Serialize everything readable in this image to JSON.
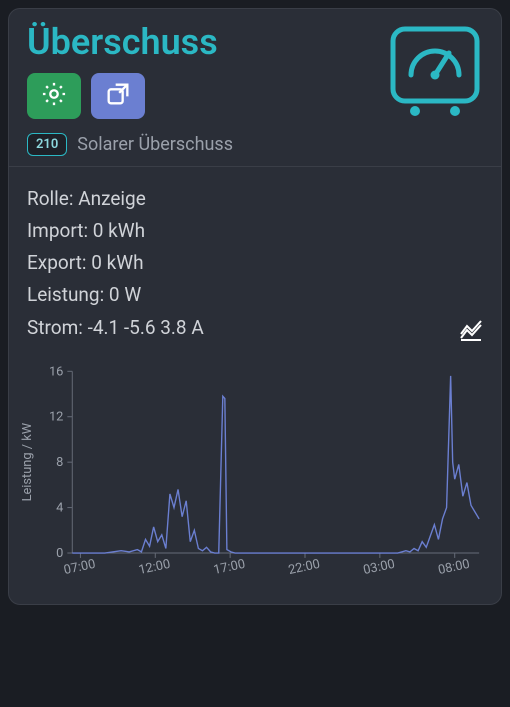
{
  "header": {
    "title": "Überschuss",
    "badge": "210",
    "subtitle": "Solarer Überschuss",
    "icon_color": "#2bb8c4"
  },
  "buttons": {
    "settings": {
      "bg": "#2d9d5a"
    },
    "expand": {
      "bg": "#6b7fd1"
    }
  },
  "stats": {
    "rolle": {
      "label": "Rolle",
      "value": "Anzeige"
    },
    "import": {
      "label": "Import",
      "value": "0 kWh"
    },
    "export": {
      "label": "Export",
      "value": "0 kWh"
    },
    "leistung": {
      "label": "Leistung",
      "value": "0 W"
    },
    "strom": {
      "label": "Strom",
      "value": "-4.1 -5.6 3.8 A"
    }
  },
  "chart": {
    "type": "line",
    "ylabel": "Leistung / kW",
    "ylim": [
      0,
      16
    ],
    "ytick_step": 4,
    "yticks": [
      0,
      4,
      8,
      12,
      16
    ],
    "xticks": [
      "07:00",
      "12:00",
      "17:00",
      "22:00",
      "03:00",
      "08:00"
    ],
    "line_color": "#6b7fd1",
    "axis_color": "#666c78",
    "label_color": "#9aa0aa",
    "background": "#2a2e37",
    "label_fontsize": 13,
    "series": [
      [
        0,
        0
      ],
      [
        4,
        0
      ],
      [
        8,
        0
      ],
      [
        12,
        0.2
      ],
      [
        14,
        0.1
      ],
      [
        16,
        0.3
      ],
      [
        17,
        0.1
      ],
      [
        18,
        1.2
      ],
      [
        19,
        0.6
      ],
      [
        20,
        2.3
      ],
      [
        21,
        1.0
      ],
      [
        22,
        1.6
      ],
      [
        23,
        0.4
      ],
      [
        24,
        5.2
      ],
      [
        25,
        4.0
      ],
      [
        26,
        5.6
      ],
      [
        27,
        3.2
      ],
      [
        28,
        4.6
      ],
      [
        29,
        1.0
      ],
      [
        30,
        2.0
      ],
      [
        31,
        0.4
      ],
      [
        32,
        0.2
      ],
      [
        33,
        0.5
      ],
      [
        34,
        0.1
      ],
      [
        35,
        0
      ],
      [
        36,
        0
      ],
      [
        37,
        13.8
      ],
      [
        37.5,
        13.6
      ],
      [
        38,
        0.3
      ],
      [
        39,
        0.1
      ],
      [
        40,
        0
      ],
      [
        44,
        0
      ],
      [
        48,
        0
      ],
      [
        52,
        0
      ],
      [
        56,
        0
      ],
      [
        60,
        0
      ],
      [
        64,
        0
      ],
      [
        68,
        0
      ],
      [
        72,
        0
      ],
      [
        76,
        0
      ],
      [
        80,
        0
      ],
      [
        82,
        0.2
      ],
      [
        83,
        0.1
      ],
      [
        84,
        0.4
      ],
      [
        85,
        0.2
      ],
      [
        86,
        1.0
      ],
      [
        87,
        0.5
      ],
      [
        88,
        1.5
      ],
      [
        89,
        2.5
      ],
      [
        90,
        1.2
      ],
      [
        91,
        3.0
      ],
      [
        92,
        4.0
      ],
      [
        93,
        15.6
      ],
      [
        93.5,
        8.0
      ],
      [
        94,
        6.5
      ],
      [
        95,
        7.8
      ],
      [
        96,
        5.0
      ],
      [
        97,
        6.2
      ],
      [
        98,
        4.2
      ],
      [
        99,
        3.6
      ],
      [
        100,
        3.0
      ]
    ]
  }
}
